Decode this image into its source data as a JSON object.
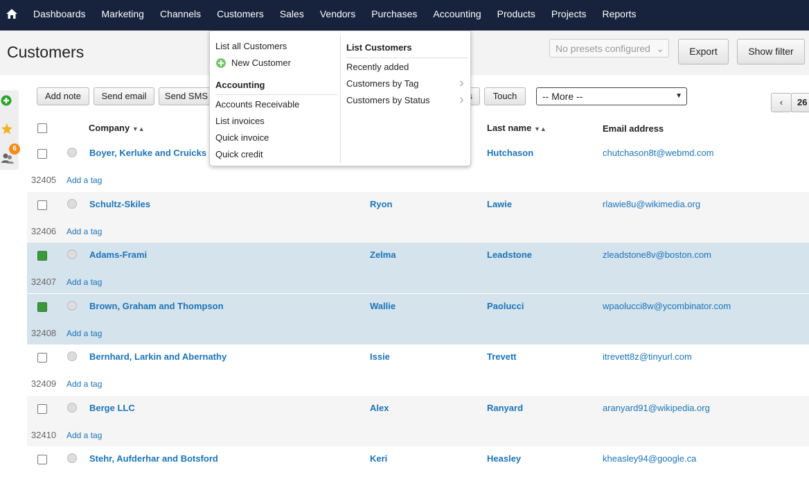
{
  "nav": {
    "items": [
      "Dashboards",
      "Marketing",
      "Channels",
      "Customers",
      "Sales",
      "Vendors",
      "Purchases",
      "Accounting",
      "Products",
      "Projects",
      "Reports"
    ]
  },
  "header": {
    "title": "Customers",
    "presets": "No presets configured",
    "export": "Export",
    "show_filter": "Show filter"
  },
  "sidebar": {
    "badge": "6"
  },
  "toolbar": {
    "buttons": [
      "Add note",
      "Send email",
      "Send SMS",
      "s",
      "Touch"
    ],
    "more": "-- More --",
    "page": "26"
  },
  "table": {
    "columns": {
      "company": "Company",
      "last_name": "Last name",
      "email": "Email address"
    },
    "add_tag": "Add a tag",
    "rows": [
      {
        "company": "Boyer, Kerluke and Cruicks",
        "last_name": "Hutchason",
        "email": "chutchason8t@webmd.com",
        "id": "32405",
        "checked": false
      },
      {
        "company": "Schultz-Skiles",
        "first_name": "Ryon",
        "last_name": "Lawie",
        "email": "rlawie8u@wikimedia.org",
        "id": "32406",
        "checked": false
      },
      {
        "company": "Adams-Frami",
        "first_name": "Zelma",
        "last_name": "Leadstone",
        "email": "zleadstone8v@boston.com",
        "id": "32407",
        "checked": true
      },
      {
        "company": "Brown, Graham and Thompson",
        "first_name": "Wallie",
        "last_name": "Paolucci",
        "email": "wpaolucci8w@ycombinator.com",
        "id": "32408",
        "checked": true
      },
      {
        "company": "Bernhard, Larkin and Abernathy",
        "first_name": "Issie",
        "last_name": "Trevett",
        "email": "itrevett8z@tinyurl.com",
        "id": "32409",
        "checked": false
      },
      {
        "company": "Berge LLC",
        "first_name": "Alex",
        "last_name": "Ranyard",
        "email": "aranyard91@wikipedia.org",
        "id": "32410",
        "checked": false
      },
      {
        "company": "Stehr, Aufderhar and Botsford",
        "first_name": "Keri",
        "last_name": "Heasley",
        "email": "kheasley94@google.ca",
        "checked": false
      }
    ]
  },
  "dropdown": {
    "left": {
      "list_all": "List all Customers",
      "new_customer": "New Customer",
      "accounting_heading": "Accounting",
      "links": [
        "Accounts Receivable",
        "List invoices",
        "Quick invoice",
        "Quick credit"
      ]
    },
    "right": {
      "heading": "List Customers",
      "links": [
        "Recently added",
        "Customers by Tag",
        "Customers by Status"
      ]
    }
  }
}
